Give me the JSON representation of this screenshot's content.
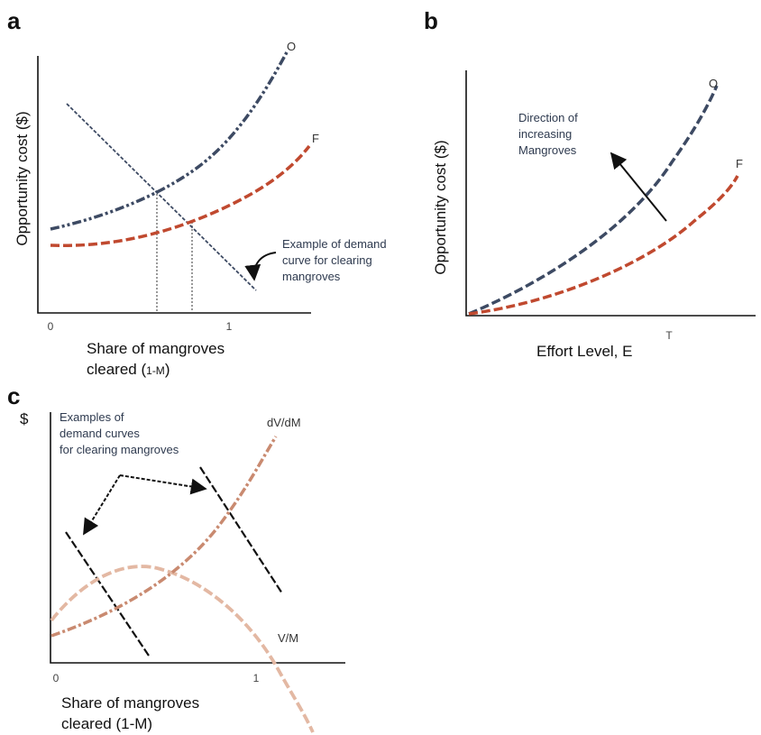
{
  "panel_a": {
    "letter": "a",
    "ylabel": "Opportunity cost ($)",
    "xlabel_line1": "Share of mangroves",
    "xlabel_line2_main": "cleared (",
    "xlabel_line2_small": "1-M",
    "xlabel_line2_end": ")",
    "tick_0": "0",
    "tick_1": "1",
    "curve_o_label": "O",
    "curve_f_label": "F",
    "annotation_line1": "Example of demand",
    "annotation_line2": "curve for clearing",
    "annotation_line3": "mangroves"
  },
  "panel_b": {
    "letter": "b",
    "ylabel": "Opportunity cost ($)",
    "xlabel": "Effort Level, E",
    "tick_t": "T",
    "curve_o_label": "O",
    "curve_f_label": "F",
    "annotation_line1": "Direction of",
    "annotation_line2": "increasing",
    "annotation_line3": "Mangroves"
  },
  "panel_c": {
    "letter": "c",
    "ylabel": "$",
    "xlabel_line1": "Share of mangroves",
    "xlabel_line2": "cleared (1-M)",
    "tick_0": "0",
    "tick_1": "1",
    "curve_dv_label": "dV/dM",
    "curve_vm_label": "V/M",
    "annotation_line1": "Examples of",
    "annotation_line2": "demand curves",
    "annotation_line3": "for clearing mangroves"
  },
  "colors": {
    "navy": "#3d4a63",
    "red": "#c0492f",
    "salmon_dark": "#c98a70",
    "salmon_light": "#e3b8a3",
    "grey_dotted": "#9a9a9a"
  }
}
